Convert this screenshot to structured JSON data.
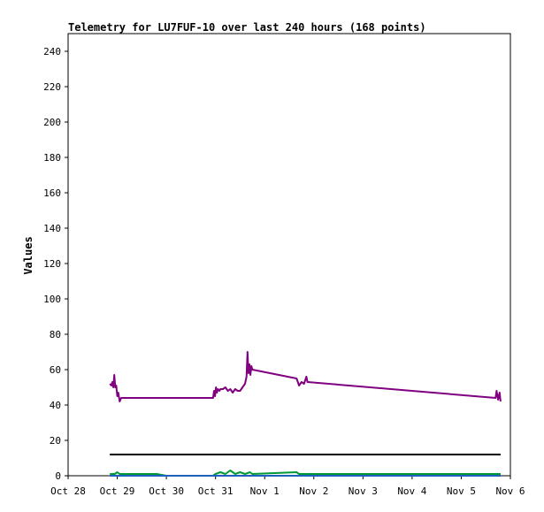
{
  "chart_data": {
    "type": "line",
    "title": "Telemetry for LU7FUF-10 over last 240 hours (168 points)",
    "xlabel": "",
    "ylabel": "Values",
    "xlim": [
      0,
      9
    ],
    "ylim": [
      0,
      250
    ],
    "x_tick_labels": [
      "Oct 28",
      "Oct 29",
      "Oct 30",
      "Oct 31",
      "Nov 1",
      "Nov 2",
      "Nov 3",
      "Nov 4",
      "Nov 5",
      "Nov 6"
    ],
    "y_ticks": [
      0,
      20,
      40,
      60,
      80,
      100,
      120,
      140,
      160,
      180,
      200,
      220,
      240
    ],
    "grid": false,
    "legend": "none",
    "series": [
      {
        "color": "#800080",
        "points": [
          [
            0.85,
            52
          ],
          [
            0.88,
            51
          ],
          [
            0.9,
            53
          ],
          [
            0.92,
            50
          ],
          [
            0.94,
            57
          ],
          [
            0.96,
            50
          ],
          [
            0.98,
            51
          ],
          [
            1.0,
            45
          ],
          [
            1.02,
            47
          ],
          [
            1.05,
            42
          ],
          [
            1.08,
            44
          ],
          [
            1.1,
            44
          ],
          [
            2.95,
            44
          ],
          [
            2.97,
            48
          ],
          [
            2.99,
            45
          ],
          [
            3.01,
            50
          ],
          [
            3.03,
            47
          ],
          [
            3.05,
            49
          ],
          [
            3.08,
            48
          ],
          [
            3.1,
            49
          ],
          [
            3.15,
            49
          ],
          [
            3.2,
            50
          ],
          [
            3.25,
            48
          ],
          [
            3.3,
            49
          ],
          [
            3.35,
            47
          ],
          [
            3.4,
            49
          ],
          [
            3.45,
            48
          ],
          [
            3.5,
            48
          ],
          [
            3.55,
            50
          ],
          [
            3.6,
            52
          ],
          [
            3.63,
            56
          ],
          [
            3.65,
            70
          ],
          [
            3.67,
            58
          ],
          [
            3.69,
            63
          ],
          [
            3.71,
            57
          ],
          [
            3.73,
            62
          ],
          [
            3.75,
            60
          ],
          [
            4.65,
            55
          ],
          [
            4.7,
            51
          ],
          [
            4.75,
            53
          ],
          [
            4.8,
            52
          ],
          [
            4.85,
            56
          ],
          [
            4.87,
            53
          ],
          [
            8.7,
            44
          ],
          [
            8.72,
            48
          ],
          [
            8.75,
            43
          ],
          [
            8.78,
            47
          ],
          [
            8.8,
            42
          ]
        ]
      },
      {
        "color": "#000000",
        "points": [
          [
            0.85,
            12
          ],
          [
            8.8,
            12
          ]
        ]
      },
      {
        "color": "#009933",
        "points": [
          [
            0.85,
            1
          ],
          [
            0.95,
            1
          ],
          [
            1.0,
            2
          ],
          [
            1.05,
            1
          ],
          [
            1.2,
            1
          ],
          [
            1.5,
            1
          ],
          [
            1.8,
            1
          ],
          [
            2.0,
            0
          ],
          [
            2.95,
            0
          ],
          [
            3.0,
            1
          ],
          [
            3.1,
            2
          ],
          [
            3.2,
            1
          ],
          [
            3.3,
            3
          ],
          [
            3.4,
            1
          ],
          [
            3.5,
            2
          ],
          [
            3.6,
            1
          ],
          [
            3.7,
            2
          ],
          [
            3.75,
            1
          ],
          [
            4.65,
            2
          ],
          [
            4.7,
            1
          ],
          [
            4.87,
            1
          ],
          [
            8.7,
            1
          ],
          [
            8.8,
            1
          ]
        ]
      },
      {
        "color": "#1f5fbf",
        "points": [
          [
            0.85,
            0
          ],
          [
            8.8,
            0
          ]
        ]
      }
    ]
  }
}
